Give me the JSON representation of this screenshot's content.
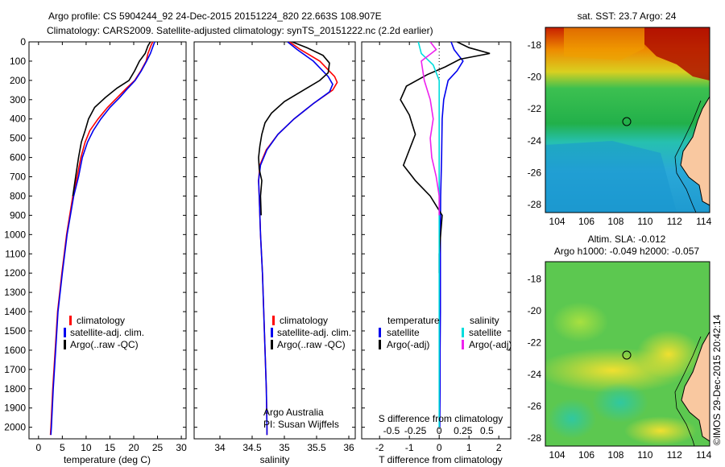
{
  "header": {
    "line1": "Argo profile: CS 5904244_92 24-Dec-2015 20151224_820 22.663S 108.907E",
    "line2": "Climatology: CARS2009. Satellite-adjusted climatology: synTS_20151222.nc (2.2d earlier)"
  },
  "chart_data": [
    {
      "type": "line",
      "id": "temperature-profile",
      "xlabel": "temperature (deg C)",
      "ylabel": "",
      "xlim": [
        -2,
        31
      ],
      "ylim": [
        2060,
        0
      ],
      "xticks": [
        0,
        5,
        10,
        15,
        20,
        25,
        30
      ],
      "yticks": [
        0,
        100,
        200,
        300,
        400,
        500,
        600,
        700,
        800,
        900,
        1000,
        1100,
        1200,
        1300,
        1400,
        1500,
        1600,
        1700,
        1800,
        1900,
        2000
      ],
      "legend": [
        "climatology",
        "satellite-adj. clim.",
        "Argo(..raw -QC)"
      ],
      "legend_placement": "lower-right",
      "series": [
        {
          "name": "climatology",
          "color": "#ff0000",
          "points": [
            [
              24,
              0
            ],
            [
              23.6,
              20
            ],
            [
              23.0,
              60
            ],
            [
              22.6,
              100
            ],
            [
              21.5,
              150
            ],
            [
              20.2,
              200
            ],
            [
              18.5,
              240
            ],
            [
              16.5,
              290
            ],
            [
              14.5,
              340
            ],
            [
              12.5,
              400
            ],
            [
              10.8,
              460
            ],
            [
              9.8,
              520
            ],
            [
              8.9,
              600
            ],
            [
              8.1,
              700
            ],
            [
              7.2,
              800
            ],
            [
              5.9,
              1000
            ],
            [
              4.9,
              1200
            ],
            [
              4.0,
              1400
            ],
            [
              3.5,
              1600
            ],
            [
              3.0,
              1800
            ],
            [
              2.6,
              2000
            ],
            [
              2.5,
              2040
            ]
          ]
        },
        {
          "name": "satellite-adj. clim.",
          "color": "#0000ee",
          "points": [
            [
              24.4,
              0
            ],
            [
              24.1,
              20
            ],
            [
              23.5,
              60
            ],
            [
              22.7,
              100
            ],
            [
              21.6,
              150
            ],
            [
              20.3,
              200
            ],
            [
              18.8,
              240
            ],
            [
              17.0,
              290
            ],
            [
              15.0,
              340
            ],
            [
              13.1,
              400
            ],
            [
              11.5,
              460
            ],
            [
              10.3,
              520
            ],
            [
              9.2,
              600
            ],
            [
              8.4,
              700
            ],
            [
              7.4,
              800
            ],
            [
              6.0,
              1000
            ],
            [
              5.0,
              1200
            ],
            [
              4.1,
              1400
            ],
            [
              3.6,
              1600
            ],
            [
              3.1,
              1800
            ],
            [
              2.7,
              2000
            ],
            [
              2.6,
              2040
            ]
          ]
        },
        {
          "name": "Argo(..raw -QC)",
          "color": "#000000",
          "points": [
            [
              23.5,
              0
            ],
            [
              23.0,
              20
            ],
            [
              22.4,
              60
            ],
            [
              21.2,
              100
            ],
            [
              20.2,
              150
            ],
            [
              19.0,
              200
            ],
            [
              16.5,
              240
            ],
            [
              14.0,
              290
            ],
            [
              11.8,
              340
            ],
            [
              10.5,
              400
            ],
            [
              9.8,
              460
            ],
            [
              9.0,
              520
            ],
            [
              8.4,
              600
            ],
            [
              7.8,
              700
            ],
            [
              7.2,
              800
            ]
          ]
        }
      ]
    },
    {
      "type": "line",
      "id": "salinity-profile",
      "xlabel": "salinity",
      "xlim": [
        33.6,
        36.1
      ],
      "ylim": [
        2060,
        0
      ],
      "xticks": [
        34,
        34.5,
        35,
        35.5,
        36
      ],
      "legend": [
        "climatology",
        "satellite-adj. clim.",
        "Argo(..raw -QC)"
      ],
      "legend_placement": "lower-right",
      "annotation": [
        "Argo Australia",
        "PI: Susan Wijffels"
      ],
      "series": [
        {
          "name": "climatology",
          "color": "#ff0000",
          "points": [
            [
              35.08,
              0
            ],
            [
              35.25,
              40
            ],
            [
              35.55,
              100
            ],
            [
              35.78,
              180
            ],
            [
              35.82,
              210
            ],
            [
              35.75,
              250
            ],
            [
              35.45,
              320
            ],
            [
              35.15,
              400
            ],
            [
              34.9,
              480
            ],
            [
              34.72,
              560
            ],
            [
              34.62,
              640
            ],
            [
              34.6,
              720
            ],
            [
              34.61,
              800
            ],
            [
              34.63,
              1000
            ],
            [
              34.66,
              1200
            ],
            [
              34.68,
              1400
            ],
            [
              34.7,
              1600
            ],
            [
              34.72,
              1800
            ],
            [
              34.73,
              2000
            ],
            [
              34.73,
              2040
            ]
          ]
        },
        {
          "name": "satellite-adj. clim.",
          "color": "#0000ee",
          "points": [
            [
              35.05,
              0
            ],
            [
              35.2,
              40
            ],
            [
              35.45,
              100
            ],
            [
              35.68,
              180
            ],
            [
              35.75,
              220
            ],
            [
              35.7,
              260
            ],
            [
              35.45,
              320
            ],
            [
              35.15,
              400
            ],
            [
              34.9,
              480
            ],
            [
              34.73,
              560
            ],
            [
              34.63,
              640
            ],
            [
              34.6,
              720
            ],
            [
              34.61,
              800
            ],
            [
              34.63,
              1000
            ],
            [
              34.66,
              1200
            ],
            [
              34.68,
              1400
            ],
            [
              34.7,
              1600
            ],
            [
              34.72,
              1800
            ],
            [
              34.73,
              2000
            ],
            [
              34.73,
              2040
            ]
          ]
        },
        {
          "name": "Argo(..raw -QC)",
          "color": "#000000",
          "points": [
            [
              35.12,
              0
            ],
            [
              35.35,
              30
            ],
            [
              35.6,
              70
            ],
            [
              35.7,
              110
            ],
            [
              35.68,
              160
            ],
            [
              35.55,
              200
            ],
            [
              35.3,
              250
            ],
            [
              35.0,
              310
            ],
            [
              34.8,
              370
            ],
            [
              34.7,
              420
            ],
            [
              34.65,
              480
            ],
            [
              34.62,
              540
            ],
            [
              34.6,
              600
            ],
            [
              34.61,
              660
            ],
            [
              34.65,
              720
            ],
            [
              34.63,
              800
            ],
            [
              34.64,
              900
            ]
          ]
        }
      ]
    },
    {
      "type": "line",
      "id": "difference-profile",
      "xlabel": "T difference from climatology",
      "x2label": "S difference from climatology",
      "xlim": [
        -2.6,
        2.4
      ],
      "ylim": [
        2060,
        0
      ],
      "xticks": [
        -2,
        -1,
        0,
        1,
        2
      ],
      "x2ticks": [
        {
          "label": "-0.5",
          "value": -1.6
        },
        {
          "label": "-0.25",
          "value": -0.8
        },
        {
          "label": "0",
          "value": 0
        },
        {
          "label": "0.25",
          "value": 0.8
        },
        {
          "label": "0.5",
          "value": 1.6
        }
      ],
      "legend_groups": [
        {
          "title": "temperature",
          "items": [
            "satellite",
            "Argo(-adj)"
          ]
        },
        {
          "title": "salinity",
          "items": [
            "satellite",
            "Argo(-adj)"
          ]
        }
      ],
      "series": [
        {
          "name": "temperature satellite",
          "color": "#0000ee",
          "points": [
            [
              0.4,
              0
            ],
            [
              0.5,
              40
            ],
            [
              0.8,
              100
            ],
            [
              0.6,
              150
            ],
            [
              0.3,
              200
            ],
            [
              0.15,
              300
            ],
            [
              0.1,
              400
            ],
            [
              0.08,
              600
            ],
            [
              0.05,
              800
            ],
            [
              0.04,
              1000
            ],
            [
              0.04,
              1200
            ],
            [
              0.04,
              1400
            ],
            [
              0.03,
              1600
            ],
            [
              0.03,
              1800
            ],
            [
              0.02,
              2000
            ]
          ]
        },
        {
          "name": "temperature Argo(-adj)",
          "color": "#000000",
          "points": [
            [
              0.6,
              0
            ],
            [
              1.0,
              30
            ],
            [
              1.7,
              60
            ],
            [
              0.7,
              90
            ],
            [
              0.2,
              130
            ],
            [
              -0.4,
              170
            ],
            [
              -1.1,
              230
            ],
            [
              -1.3,
              300
            ],
            [
              -1.0,
              380
            ],
            [
              -0.8,
              480
            ],
            [
              -1.0,
              560
            ],
            [
              -1.2,
              640
            ],
            [
              -0.8,
              720
            ],
            [
              -0.3,
              800
            ],
            [
              0.1,
              900
            ],
            [
              0.05,
              1000
            ],
            [
              0.0,
              1100
            ],
            [
              0.0,
              1200
            ]
          ]
        },
        {
          "name": "salinity satellite",
          "color": "#00dddd",
          "points": [
            [
              -0.7,
              0
            ],
            [
              -0.6,
              60
            ],
            [
              -0.2,
              120
            ],
            [
              0.0,
              200
            ],
            [
              0.0,
              400
            ],
            [
              0.0,
              800
            ],
            [
              0.0,
              1200
            ],
            [
              0.0,
              1600
            ],
            [
              0.0,
              2000
            ]
          ]
        },
        {
          "name": "salinity Argo(-adj)",
          "color": "#ee22ee",
          "points": [
            [
              -0.3,
              0
            ],
            [
              -0.1,
              40
            ],
            [
              -0.6,
              100
            ],
            [
              -0.5,
              200
            ],
            [
              -0.3,
              300
            ],
            [
              -0.2,
              400
            ],
            [
              -0.3,
              500
            ],
            [
              -0.25,
              600
            ],
            [
              -0.1,
              700
            ],
            [
              0.0,
              800
            ],
            [
              0.0,
              900
            ]
          ]
        }
      ]
    },
    {
      "type": "heatmap",
      "id": "sst-map",
      "title": "sat. SST: 23.7 Argo: 24",
      "xticks": [
        104,
        106,
        108,
        110,
        112,
        114
      ],
      "yticks": [
        -18,
        -20,
        -22,
        -24,
        -26,
        -28
      ],
      "xlim": [
        103.2,
        114.4
      ],
      "ylim": [
        -28.5,
        -16.9
      ],
      "marker": {
        "lon": 108.9,
        "lat": -22.66
      }
    },
    {
      "type": "heatmap",
      "id": "sla-map",
      "title": [
        "Altim. SLA: -0.012",
        "Argo h1000: -0.049 h2000: -0.057"
      ],
      "xticks": [
        104,
        106,
        108,
        110,
        112,
        114
      ],
      "yticks": [
        -18,
        -20,
        -22,
        -24,
        -26,
        -28
      ],
      "xlim": [
        103.2,
        114.4
      ],
      "ylim": [
        -28.5,
        -16.9
      ],
      "marker": {
        "lon": 108.9,
        "lat": -22.66
      }
    }
  ],
  "footer": {
    "stamp": "©IMOS 29-Dec-2015 20:42:14"
  },
  "colors": {
    "red": "#ff0000",
    "blue": "#0000ee",
    "black": "#000000",
    "cyan": "#00dddd",
    "magenta": "#ee22ee",
    "land": "#f9c8a0"
  }
}
